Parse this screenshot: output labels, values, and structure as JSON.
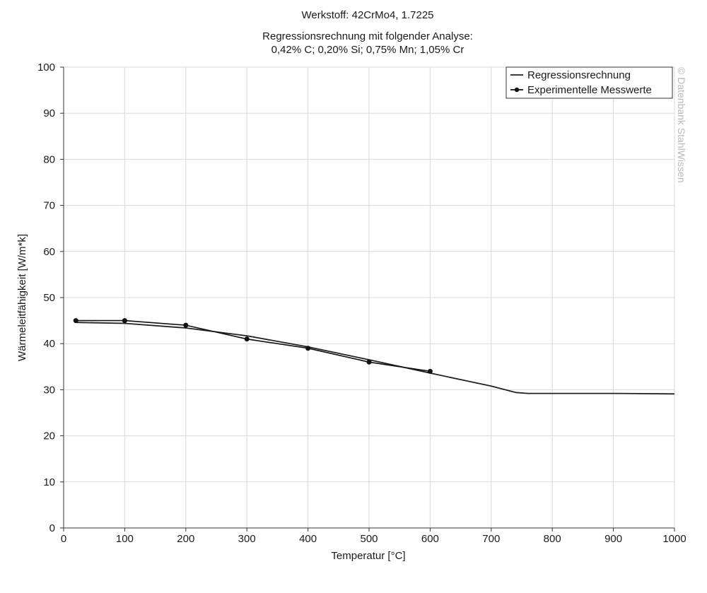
{
  "header": {
    "title": "Werkstoff: 42CrMo4, 1.7225",
    "subtitle_line1": "Regressionsrechnung mit folgender Analyse:",
    "subtitle_line2": "0,42% C; 0,20% Si; 0,75% Mn; 1,05% Cr"
  },
  "watermark": "© Datenbank StahlWissen",
  "chart_data": {
    "type": "line",
    "title": "Werkstoff: 42CrMo4, 1.7225",
    "subtitle": "Regressionsrechnung mit folgender Analyse: 0,42% C; 0,20% Si; 0,75% Mn; 1,05% Cr",
    "xlabel": "Temperatur [°C]",
    "ylabel": "Wärmeleitfähigkeit [W/m*k]",
    "xlim": [
      0,
      1000
    ],
    "ylim": [
      0,
      100
    ],
    "xticks": [
      0,
      100,
      200,
      300,
      400,
      500,
      600,
      700,
      800,
      900,
      1000
    ],
    "yticks": [
      0,
      10,
      20,
      30,
      40,
      50,
      60,
      70,
      80,
      90,
      100
    ],
    "grid": true,
    "legend_position": "top-right",
    "series": [
      {
        "name": "Regressionsrechnung",
        "color": "#222222",
        "markers": false,
        "x": [
          20,
          100,
          200,
          300,
          400,
          500,
          600,
          700,
          740,
          760,
          800,
          900,
          1000
        ],
        "y": [
          44.6,
          44.4,
          43.4,
          41.7,
          39.3,
          36.5,
          33.6,
          30.8,
          29.4,
          29.2,
          29.2,
          29.2,
          29.1
        ]
      },
      {
        "name": "Experimentelle Messwerte",
        "color": "#111111",
        "markers": true,
        "x": [
          20,
          100,
          200,
          300,
          400,
          500,
          600
        ],
        "y": [
          45,
          45,
          44,
          41,
          39,
          36,
          34
        ]
      }
    ]
  }
}
